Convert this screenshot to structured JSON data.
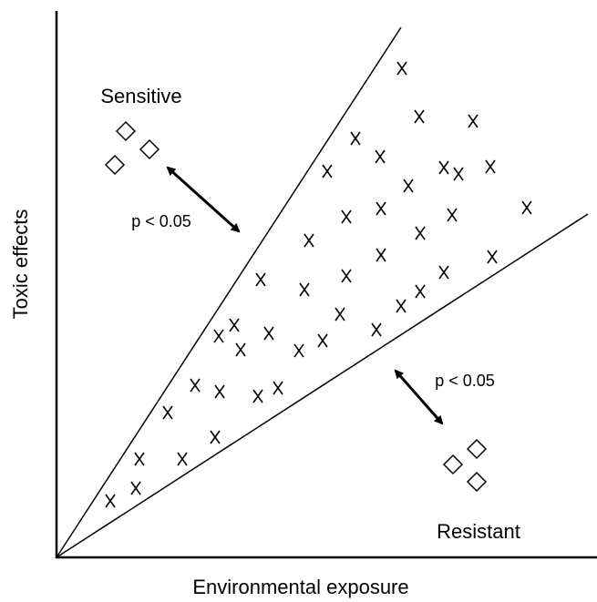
{
  "axes": {
    "x_label": "Environmental exposure",
    "y_label": "Toxic effects"
  },
  "groups": {
    "sensitive": {
      "label": "Sensitive",
      "significance": "p < 0.05"
    },
    "resistant": {
      "label": "Resistant",
      "significance": "p < 0.05"
    }
  }
}
